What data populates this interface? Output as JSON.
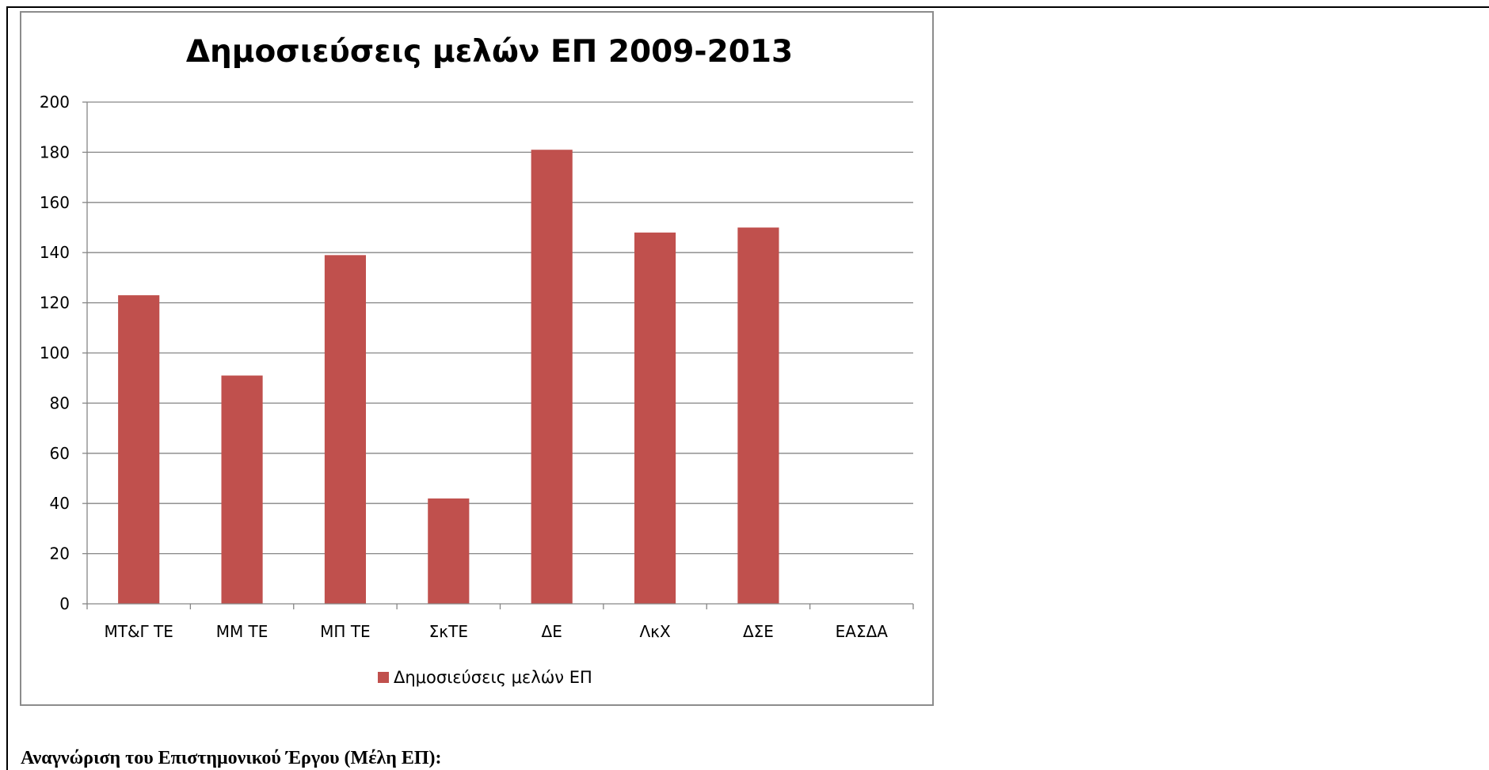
{
  "chart_data": {
    "type": "bar",
    "title": "Δημοσιεύσεις μελών ΕΠ 2009-2013",
    "categories": [
      "ΜΤ&Γ ΤΕ",
      "ΜΜ ΤΕ",
      "ΜΠ ΤΕ",
      "ΣκΤΕ",
      "ΔΕ",
      "ΛκΧ",
      "ΔΣΕ",
      "ΕΑΣΔΑ"
    ],
    "series": [
      {
        "name": "Δημοσιεύσεις μελών ΕΠ",
        "values": [
          123,
          91,
          139,
          42,
          181,
          148,
          150,
          0
        ],
        "color": "#c0504d"
      }
    ],
    "yticks": [
      0,
      20,
      40,
      60,
      80,
      100,
      120,
      140,
      160,
      180,
      200
    ],
    "ylim": [
      0,
      200
    ],
    "grid": true,
    "legend_position": "bottom",
    "colors": {
      "gridline": "#868686",
      "axis": "#868686",
      "chart_border": "#8c8c8c"
    }
  },
  "document": {
    "heading": "Αναγνώριση του Επιστημονικού Έργου (Μέλη ΕΠ):"
  }
}
